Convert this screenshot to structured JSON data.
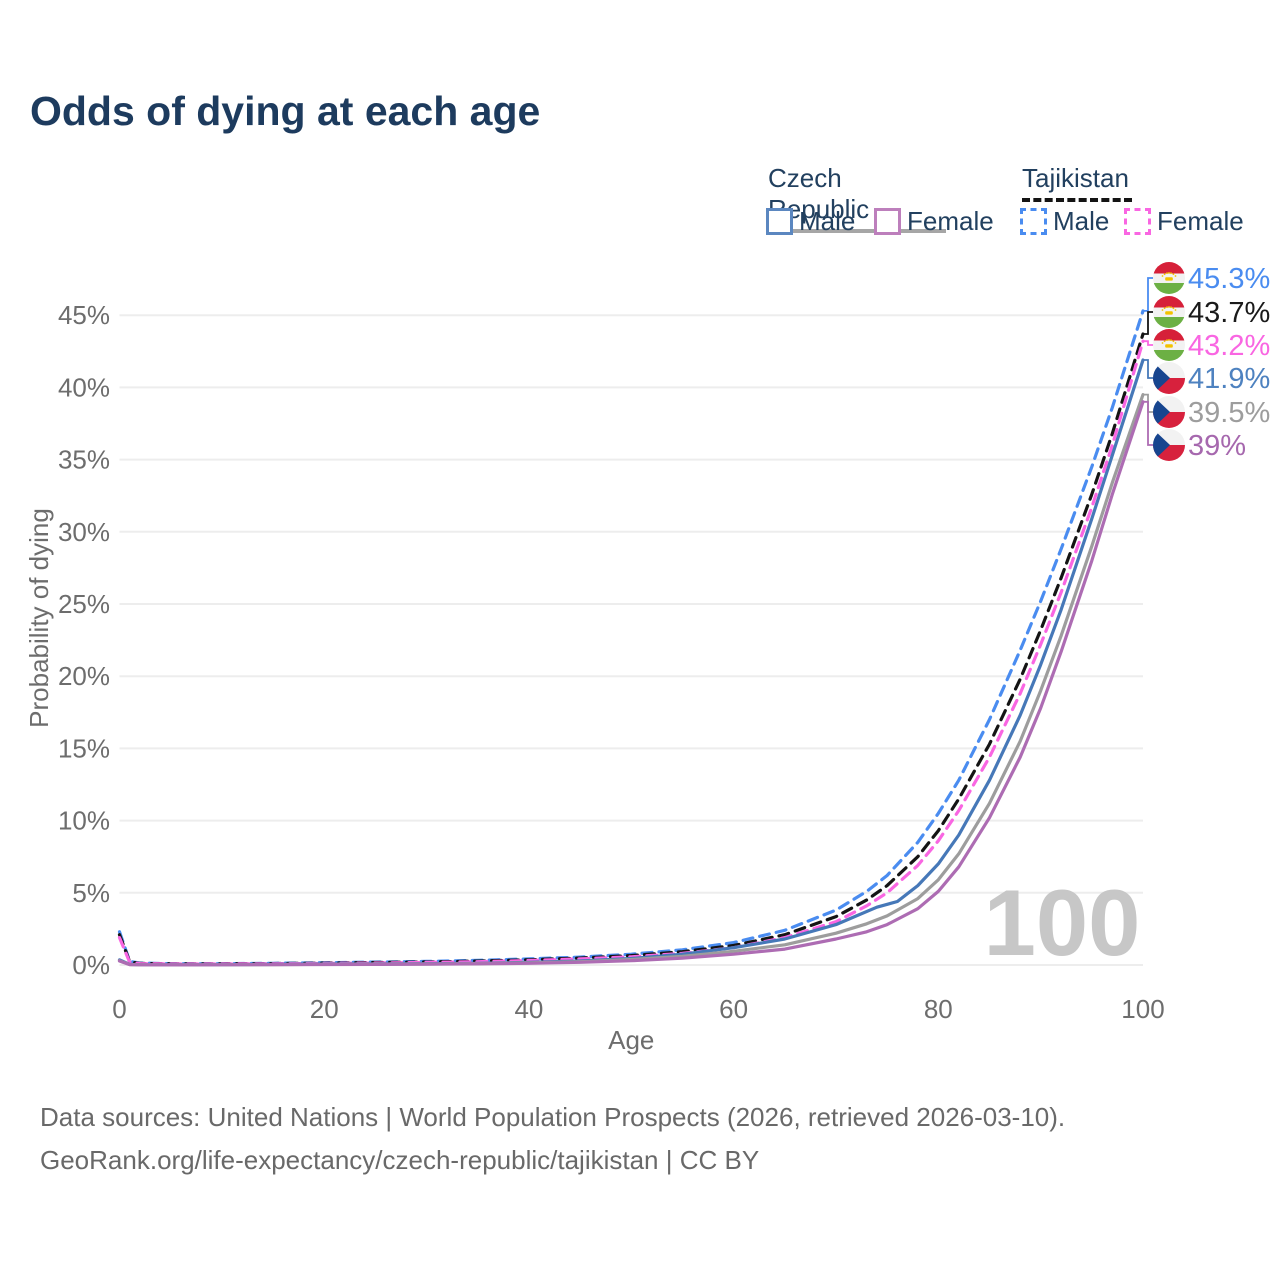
{
  "title": "Odds of dying at each age",
  "legend": {
    "czech": {
      "title": "Czech Republic",
      "male": "Male",
      "female": "Female"
    },
    "tajikistan": {
      "title": "Tajikistan",
      "male": "Male",
      "female": "Female"
    }
  },
  "watermark": "100",
  "footer": {
    "line1": "Data sources: United Nations | World Population Prospects (2026, retrieved 2026-03-10).",
    "line2": "GeoRank.org/life-expectancy/czech-republic/tajikistan | CC BY"
  },
  "colors": {
    "title": "#1d3b5e",
    "axis_text": "#6d6d6d",
    "gridline": "#ededed",
    "watermark": "#c7c7c7",
    "czech_rule": "#a6a6a6",
    "tajik_rule": "#141414"
  },
  "chart_data": {
    "type": "line",
    "title": "Odds of dying at each age",
    "xlabel": "Age",
    "ylabel": "Probability of dying",
    "xlim": [
      0,
      100
    ],
    "ylim_percent": [
      0,
      47
    ],
    "xticks": [
      0,
      20,
      40,
      60,
      80,
      100
    ],
    "ytick_percent": [
      0,
      5,
      10,
      15,
      20,
      25,
      30,
      35,
      40,
      45
    ],
    "grid": "horizontal",
    "legend_position": "top-right",
    "series": [
      {
        "name": "Tajikistan Male",
        "country": "Tajikistan",
        "sex": "Male",
        "style": "dashed",
        "color": "#4a8cf0",
        "label_color": "#4a8cf0",
        "end_label": "45.3%",
        "end_value": 45.3,
        "flag": "tajikistan",
        "points": [
          [
            0,
            2.3
          ],
          [
            1,
            0.25
          ],
          [
            2,
            0.13
          ],
          [
            5,
            0.09
          ],
          [
            10,
            0.09
          ],
          [
            15,
            0.12
          ],
          [
            20,
            0.16
          ],
          [
            25,
            0.2
          ],
          [
            30,
            0.25
          ],
          [
            35,
            0.32
          ],
          [
            40,
            0.42
          ],
          [
            45,
            0.55
          ],
          [
            50,
            0.75
          ],
          [
            55,
            1.05
          ],
          [
            60,
            1.55
          ],
          [
            65,
            2.4
          ],
          [
            70,
            3.8
          ],
          [
            73,
            5.1
          ],
          [
            75,
            6.2
          ],
          [
            78,
            8.5
          ],
          [
            80,
            10.5
          ],
          [
            82,
            12.8
          ],
          [
            85,
            17.0
          ],
          [
            88,
            21.8
          ],
          [
            90,
            25.2
          ],
          [
            92,
            28.8
          ],
          [
            95,
            34.5
          ],
          [
            97,
            38.6
          ],
          [
            100,
            45.3
          ]
        ]
      },
      {
        "name": "Tajikistan Both sexes",
        "country": "Tajikistan",
        "sex": "Both",
        "style": "dashed",
        "color": "#141414",
        "label_color": "#1a1a1a",
        "end_label": "43.7%",
        "end_value": 43.7,
        "flag": "tajikistan",
        "points": [
          [
            0,
            2.1
          ],
          [
            1,
            0.22
          ],
          [
            2,
            0.11
          ],
          [
            5,
            0.08
          ],
          [
            10,
            0.08
          ],
          [
            15,
            0.1
          ],
          [
            20,
            0.13
          ],
          [
            25,
            0.17
          ],
          [
            30,
            0.21
          ],
          [
            35,
            0.27
          ],
          [
            40,
            0.36
          ],
          [
            45,
            0.48
          ],
          [
            50,
            0.65
          ],
          [
            55,
            0.92
          ],
          [
            60,
            1.35
          ],
          [
            65,
            2.1
          ],
          [
            70,
            3.35
          ],
          [
            73,
            4.5
          ],
          [
            75,
            5.5
          ],
          [
            78,
            7.5
          ],
          [
            80,
            9.3
          ],
          [
            82,
            11.5
          ],
          [
            85,
            15.3
          ],
          [
            88,
            19.8
          ],
          [
            90,
            23.2
          ],
          [
            92,
            26.8
          ],
          [
            95,
            32.6
          ],
          [
            97,
            36.8
          ],
          [
            100,
            43.7
          ]
        ]
      },
      {
        "name": "Tajikistan Female",
        "country": "Tajikistan",
        "sex": "Female",
        "style": "dashed",
        "color": "#f966e2",
        "label_color": "#f966e2",
        "end_label": "43.2%",
        "end_value": 43.2,
        "flag": "tajikistan",
        "points": [
          [
            0,
            1.9
          ],
          [
            1,
            0.19
          ],
          [
            2,
            0.1
          ],
          [
            5,
            0.07
          ],
          [
            10,
            0.07
          ],
          [
            15,
            0.09
          ],
          [
            20,
            0.11
          ],
          [
            25,
            0.14
          ],
          [
            30,
            0.18
          ],
          [
            35,
            0.23
          ],
          [
            40,
            0.31
          ],
          [
            45,
            0.42
          ],
          [
            50,
            0.57
          ],
          [
            55,
            0.8
          ],
          [
            60,
            1.2
          ],
          [
            65,
            1.9
          ],
          [
            70,
            3.0
          ],
          [
            73,
            4.1
          ],
          [
            75,
            5.0
          ],
          [
            78,
            6.9
          ],
          [
            80,
            8.6
          ],
          [
            82,
            10.7
          ],
          [
            85,
            14.4
          ],
          [
            88,
            18.8
          ],
          [
            90,
            22.2
          ],
          [
            92,
            25.8
          ],
          [
            95,
            31.7
          ],
          [
            97,
            36.0
          ],
          [
            100,
            43.2
          ]
        ]
      },
      {
        "name": "Czech Republic Male",
        "country": "Czech Republic",
        "sex": "Male",
        "style": "solid",
        "color": "#4678b8",
        "label_color": "#4e82c0",
        "end_label": "41.9%",
        "end_value": 41.9,
        "flag": "czech",
        "points": [
          [
            0,
            0.35
          ],
          [
            1,
            0.04
          ],
          [
            2,
            0.02
          ],
          [
            5,
            0.015
          ],
          [
            10,
            0.02
          ],
          [
            15,
            0.04
          ],
          [
            20,
            0.07
          ],
          [
            25,
            0.08
          ],
          [
            30,
            0.09
          ],
          [
            35,
            0.12
          ],
          [
            40,
            0.18
          ],
          [
            45,
            0.28
          ],
          [
            50,
            0.45
          ],
          [
            55,
            0.75
          ],
          [
            60,
            1.2
          ],
          [
            65,
            1.8
          ],
          [
            70,
            2.8
          ],
          [
            72,
            3.4
          ],
          [
            74,
            4.0
          ],
          [
            76,
            4.4
          ],
          [
            78,
            5.5
          ],
          [
            80,
            7.0
          ],
          [
            82,
            9.0
          ],
          [
            85,
            12.8
          ],
          [
            88,
            17.3
          ],
          [
            90,
            20.8
          ],
          [
            92,
            24.6
          ],
          [
            95,
            30.9
          ],
          [
            97,
            35.3
          ],
          [
            100,
            41.9
          ]
        ]
      },
      {
        "name": "Czech Republic Both sexes",
        "country": "Czech Republic",
        "sex": "Both",
        "style": "solid",
        "color": "#9d9d9d",
        "label_color": "#9d9d9d",
        "end_label": "39.5%",
        "end_value": 39.5,
        "flag": "czech",
        "points": [
          [
            0,
            0.3
          ],
          [
            1,
            0.035
          ],
          [
            2,
            0.018
          ],
          [
            5,
            0.013
          ],
          [
            10,
            0.018
          ],
          [
            15,
            0.03
          ],
          [
            20,
            0.05
          ],
          [
            25,
            0.06
          ],
          [
            30,
            0.07
          ],
          [
            35,
            0.1
          ],
          [
            40,
            0.15
          ],
          [
            45,
            0.23
          ],
          [
            50,
            0.38
          ],
          [
            55,
            0.6
          ],
          [
            60,
            0.95
          ],
          [
            65,
            1.4
          ],
          [
            70,
            2.2
          ],
          [
            73,
            2.85
          ],
          [
            75,
            3.4
          ],
          [
            78,
            4.6
          ],
          [
            80,
            5.9
          ],
          [
            82,
            7.7
          ],
          [
            85,
            11.2
          ],
          [
            88,
            15.5
          ],
          [
            90,
            19.0
          ],
          [
            92,
            22.8
          ],
          [
            95,
            29.0
          ],
          [
            97,
            33.4
          ],
          [
            100,
            39.5
          ]
        ]
      },
      {
        "name": "Czech Republic Female",
        "country": "Czech Republic",
        "sex": "Female",
        "style": "solid",
        "color": "#ad6cb3",
        "label_color": "#a668ae",
        "end_label": "39%",
        "end_value": 39.0,
        "flag": "czech",
        "points": [
          [
            0,
            0.28
          ],
          [
            1,
            0.03
          ],
          [
            2,
            0.015
          ],
          [
            5,
            0.01
          ],
          [
            10,
            0.015
          ],
          [
            15,
            0.025
          ],
          [
            20,
            0.035
          ],
          [
            25,
            0.045
          ],
          [
            30,
            0.055
          ],
          [
            35,
            0.08
          ],
          [
            40,
            0.12
          ],
          [
            45,
            0.19
          ],
          [
            50,
            0.3
          ],
          [
            55,
            0.48
          ],
          [
            60,
            0.75
          ],
          [
            65,
            1.1
          ],
          [
            70,
            1.8
          ],
          [
            73,
            2.3
          ],
          [
            75,
            2.8
          ],
          [
            78,
            3.9
          ],
          [
            80,
            5.1
          ],
          [
            82,
            6.8
          ],
          [
            85,
            10.2
          ],
          [
            88,
            14.4
          ],
          [
            90,
            17.8
          ],
          [
            92,
            21.7
          ],
          [
            95,
            28.0
          ],
          [
            97,
            32.6
          ],
          [
            100,
            39.0
          ]
        ]
      }
    ]
  }
}
